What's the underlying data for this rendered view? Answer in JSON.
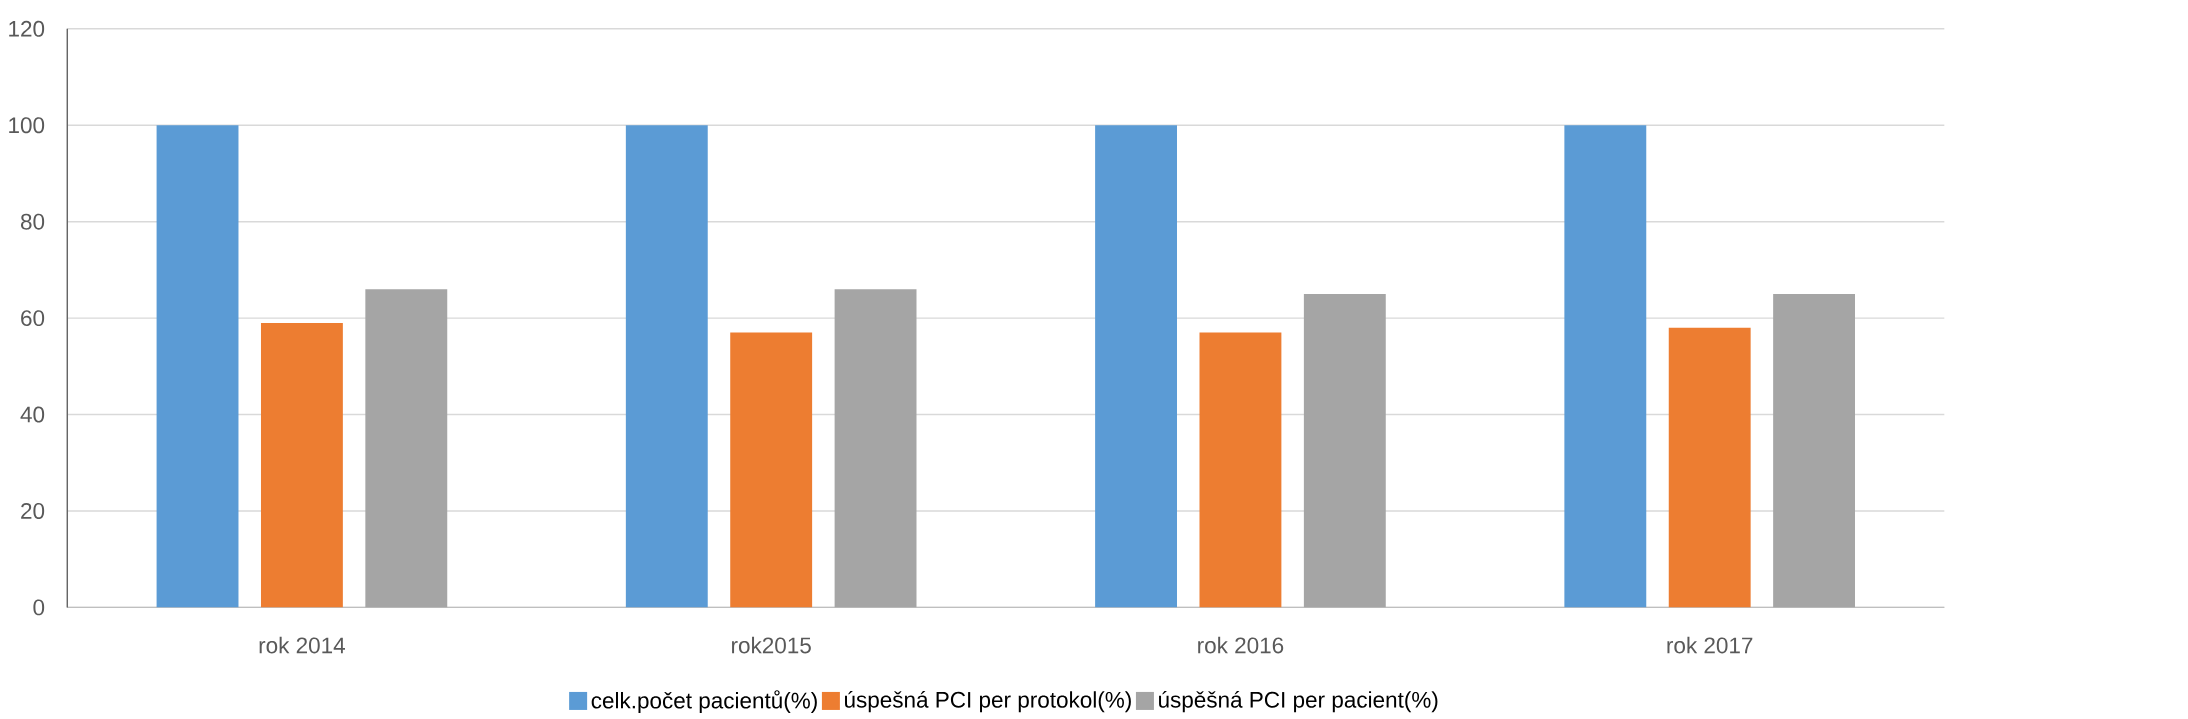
{
  "chart_data": {
    "type": "bar",
    "categories": [
      "rok 2014",
      "rok2015",
      "rok 2016",
      "rok 2017"
    ],
    "series": [
      {
        "name": "celk.počet pacientů(%)",
        "color": "#5b9bd5",
        "values": [
          100,
          100,
          100,
          100
        ]
      },
      {
        "name": "úspešná PCI per protokol(%)",
        "color": "#ed7d31",
        "values": [
          59,
          57,
          57,
          58
        ]
      },
      {
        "name": "úspěšná PCI per pacient(%)",
        "color": "#a5a5a5",
        "values": [
          66,
          66,
          65,
          65
        ]
      }
    ],
    "ylim": [
      0,
      120
    ],
    "yticks": [
      0,
      20,
      40,
      60,
      80,
      100,
      120
    ],
    "grid": "y",
    "legend": "bottom"
  }
}
